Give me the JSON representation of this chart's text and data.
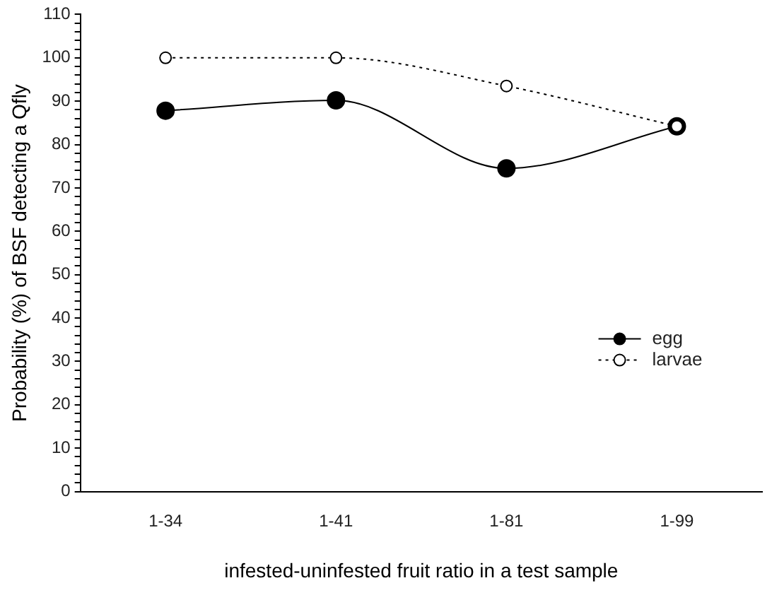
{
  "chart_data": {
    "type": "line",
    "xlabel": "infested-uninfested fruit ratio in a test sample",
    "ylabel": "Probability (%) of BSF detecting a Qfly",
    "categories": [
      "1-34",
      "1-41",
      "1-81",
      "1-99"
    ],
    "series": [
      {
        "name": "egg",
        "color": "#000000",
        "values": [
          87.8,
          90.2,
          74.5,
          84.2
        ],
        "line_style": "solid"
      },
      {
        "name": "larvae",
        "color": "#ffffff",
        "values": [
          100,
          100,
          93.5,
          84.2
        ],
        "line_style": "dotted"
      }
    ],
    "ylim": [
      0,
      110
    ],
    "yticks": [
      0,
      {
        "value": 2,
        "label": null
      },
      {
        "value": 4,
        "label": null
      },
      {
        "value": 6,
        "label": null
      },
      {
        "value": 8,
        "label": null
      },
      10,
      {
        "value": 12,
        "label": null
      },
      {
        "value": 14,
        "label": null
      },
      {
        "value": 16,
        "label": null
      },
      {
        "value": 18,
        "label": null
      },
      20,
      {
        "value": 22,
        "label": null
      },
      {
        "value": 24,
        "label": null
      },
      {
        "value": 26,
        "label": null
      },
      {
        "value": 28,
        "label": null
      },
      30,
      {
        "value": 32,
        "label": null
      },
      {
        "value": 34,
        "label": null
      },
      {
        "value": 36,
        "label": null
      },
      {
        "value": 38,
        "label": null
      },
      40,
      {
        "value": 42,
        "label": null
      },
      {
        "value": 44,
        "label": null
      },
      {
        "value": 46,
        "label": null
      },
      {
        "value": 48,
        "label": null
      },
      50,
      {
        "value": 52,
        "label": null
      },
      {
        "value": 54,
        "label": null
      },
      {
        "value": 56,
        "label": null
      },
      {
        "value": 58,
        "label": null
      },
      60,
      {
        "value": 62,
        "label": null
      },
      {
        "value": 64,
        "label": null
      },
      {
        "value": 66,
        "label": null
      },
      {
        "value": 68,
        "label": null
      },
      70,
      {
        "value": 72,
        "label": null
      },
      {
        "value": 74,
        "label": null
      },
      {
        "value": 76,
        "label": null
      },
      {
        "value": 78,
        "label": null
      },
      80,
      {
        "value": 82,
        "label": null
      },
      {
        "value": 84,
        "label": null
      },
      {
        "value": 86,
        "label": null
      },
      {
        "value": 88,
        "label": null
      },
      90,
      {
        "value": 92,
        "label": null
      },
      {
        "value": 94,
        "label": null
      },
      {
        "value": 96,
        "label": null
      },
      {
        "value": 98,
        "label": null
      },
      100,
      {
        "value": 102,
        "label": null
      },
      {
        "value": 104,
        "label": null
      },
      {
        "value": 106,
        "label": null
      },
      {
        "value": 108,
        "label": null
      },
      110
    ],
    "grid": false,
    "legend": "right",
    "marker": "circle"
  }
}
